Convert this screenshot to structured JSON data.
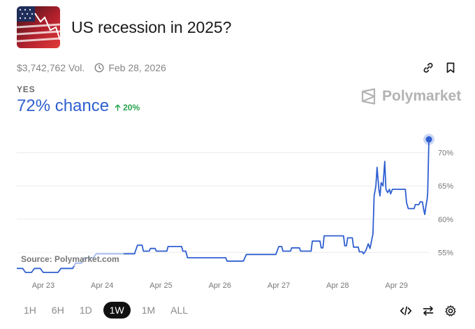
{
  "market": {
    "title": "US recession in 2025?",
    "volume": "$3,742,762 Vol.",
    "end_date": "Feb 28, 2026",
    "outcome_label": "YES",
    "chance": "72% chance",
    "delta": "20%",
    "brand": "Polymarket",
    "source": "Source: Polymarket.com"
  },
  "icons": {
    "thumbnail": "us-flag-market-thumbnail",
    "clock": "clock-icon",
    "link": "link-icon",
    "bookmark": "bookmark-icon",
    "delta": "arrow-up-icon",
    "brand": "polymarket-logo-icon",
    "embed": "code-icon",
    "swap": "swap-icon",
    "settings": "gear-icon"
  },
  "ranges": {
    "items": [
      "1H",
      "6H",
      "1D",
      "1W",
      "1M",
      "ALL"
    ],
    "active": "1W"
  },
  "colors": {
    "line": "#2f5fd0",
    "up": "#2aa44f",
    "brand_gray": "#b3b3b3"
  },
  "chart_data": {
    "type": "line",
    "title": "",
    "xlabel": "",
    "ylabel": "",
    "x_ticks": [
      "Apr 23",
      "Apr 24",
      "Apr 25",
      "Apr 26",
      "Apr 27",
      "Apr 28",
      "Apr 29"
    ],
    "y_ticks": [
      "55%",
      "60%",
      "65%",
      "70%"
    ],
    "ylim": [
      52,
      73
    ],
    "xlim": [
      22.55,
      29.55
    ],
    "grid": true,
    "series": [
      {
        "values": [
          [
            22.55,
            52.6
          ],
          [
            22.65,
            52.6
          ],
          [
            22.7,
            52.0
          ],
          [
            22.8,
            52.0
          ],
          [
            22.85,
            52.6
          ],
          [
            22.95,
            52.6
          ],
          [
            23.0,
            52.0
          ],
          [
            23.25,
            52.0
          ],
          [
            23.3,
            52.6
          ],
          [
            23.5,
            52.6
          ],
          [
            23.55,
            53.4
          ],
          [
            23.65,
            53.4
          ],
          [
            23.7,
            54.2
          ],
          [
            23.85,
            54.2
          ],
          [
            23.9,
            54.8
          ],
          [
            24.55,
            54.8
          ],
          [
            24.6,
            56.1
          ],
          [
            24.68,
            56.1
          ],
          [
            24.7,
            55.2
          ],
          [
            24.8,
            55.2
          ],
          [
            24.82,
            55.6
          ],
          [
            24.9,
            55.6
          ],
          [
            24.92,
            55.2
          ],
          [
            25.1,
            55.2
          ],
          [
            25.12,
            55.9
          ],
          [
            25.35,
            55.9
          ],
          [
            25.37,
            55.2
          ],
          [
            25.42,
            55.2
          ],
          [
            25.45,
            54.2
          ],
          [
            26.1,
            54.2
          ],
          [
            26.12,
            53.7
          ],
          [
            26.4,
            53.7
          ],
          [
            26.45,
            54.7
          ],
          [
            26.95,
            54.7
          ],
          [
            27.0,
            55.9
          ],
          [
            27.05,
            55.9
          ],
          [
            27.07,
            55.2
          ],
          [
            27.2,
            55.2
          ],
          [
            27.22,
            55.7
          ],
          [
            27.35,
            55.7
          ],
          [
            27.37,
            55.2
          ],
          [
            27.55,
            55.2
          ],
          [
            27.57,
            56.7
          ],
          [
            27.7,
            56.7
          ],
          [
            27.72,
            55.7
          ],
          [
            27.75,
            55.7
          ],
          [
            27.77,
            57.5
          ],
          [
            28.1,
            57.5
          ],
          [
            28.12,
            56.0
          ],
          [
            28.15,
            56.0
          ],
          [
            28.17,
            57.2
          ],
          [
            28.25,
            57.2
          ],
          [
            28.27,
            55.8
          ],
          [
            28.35,
            55.8
          ],
          [
            28.37,
            55.1
          ],
          [
            28.42,
            55.1
          ],
          [
            28.44,
            54.8
          ],
          [
            28.48,
            55.3
          ],
          [
            28.52,
            56.3
          ],
          [
            28.55,
            55.6
          ],
          [
            28.6,
            57.8
          ],
          [
            28.62,
            63.5
          ],
          [
            28.65,
            65.0
          ],
          [
            28.67,
            67.8
          ],
          [
            28.7,
            64.5
          ],
          [
            28.72,
            63.5
          ],
          [
            28.74,
            65.5
          ],
          [
            28.77,
            65.0
          ],
          [
            28.8,
            68.7
          ],
          [
            28.82,
            64.5
          ],
          [
            28.85,
            64.0
          ],
          [
            28.88,
            64.5
          ],
          [
            28.9,
            63.8
          ],
          [
            28.93,
            64.5
          ],
          [
            29.15,
            64.5
          ],
          [
            29.17,
            62.5
          ],
          [
            29.2,
            61.6
          ],
          [
            29.3,
            61.6
          ],
          [
            29.32,
            62.2
          ],
          [
            29.38,
            62.2
          ],
          [
            29.4,
            62.6
          ],
          [
            29.44,
            62.6
          ],
          [
            29.46,
            61.5
          ],
          [
            29.48,
            60.7
          ],
          [
            29.5,
            62.0
          ],
          [
            29.52,
            63.0
          ],
          [
            29.53,
            64.0
          ],
          [
            29.55,
            72.0
          ]
        ]
      }
    ]
  }
}
